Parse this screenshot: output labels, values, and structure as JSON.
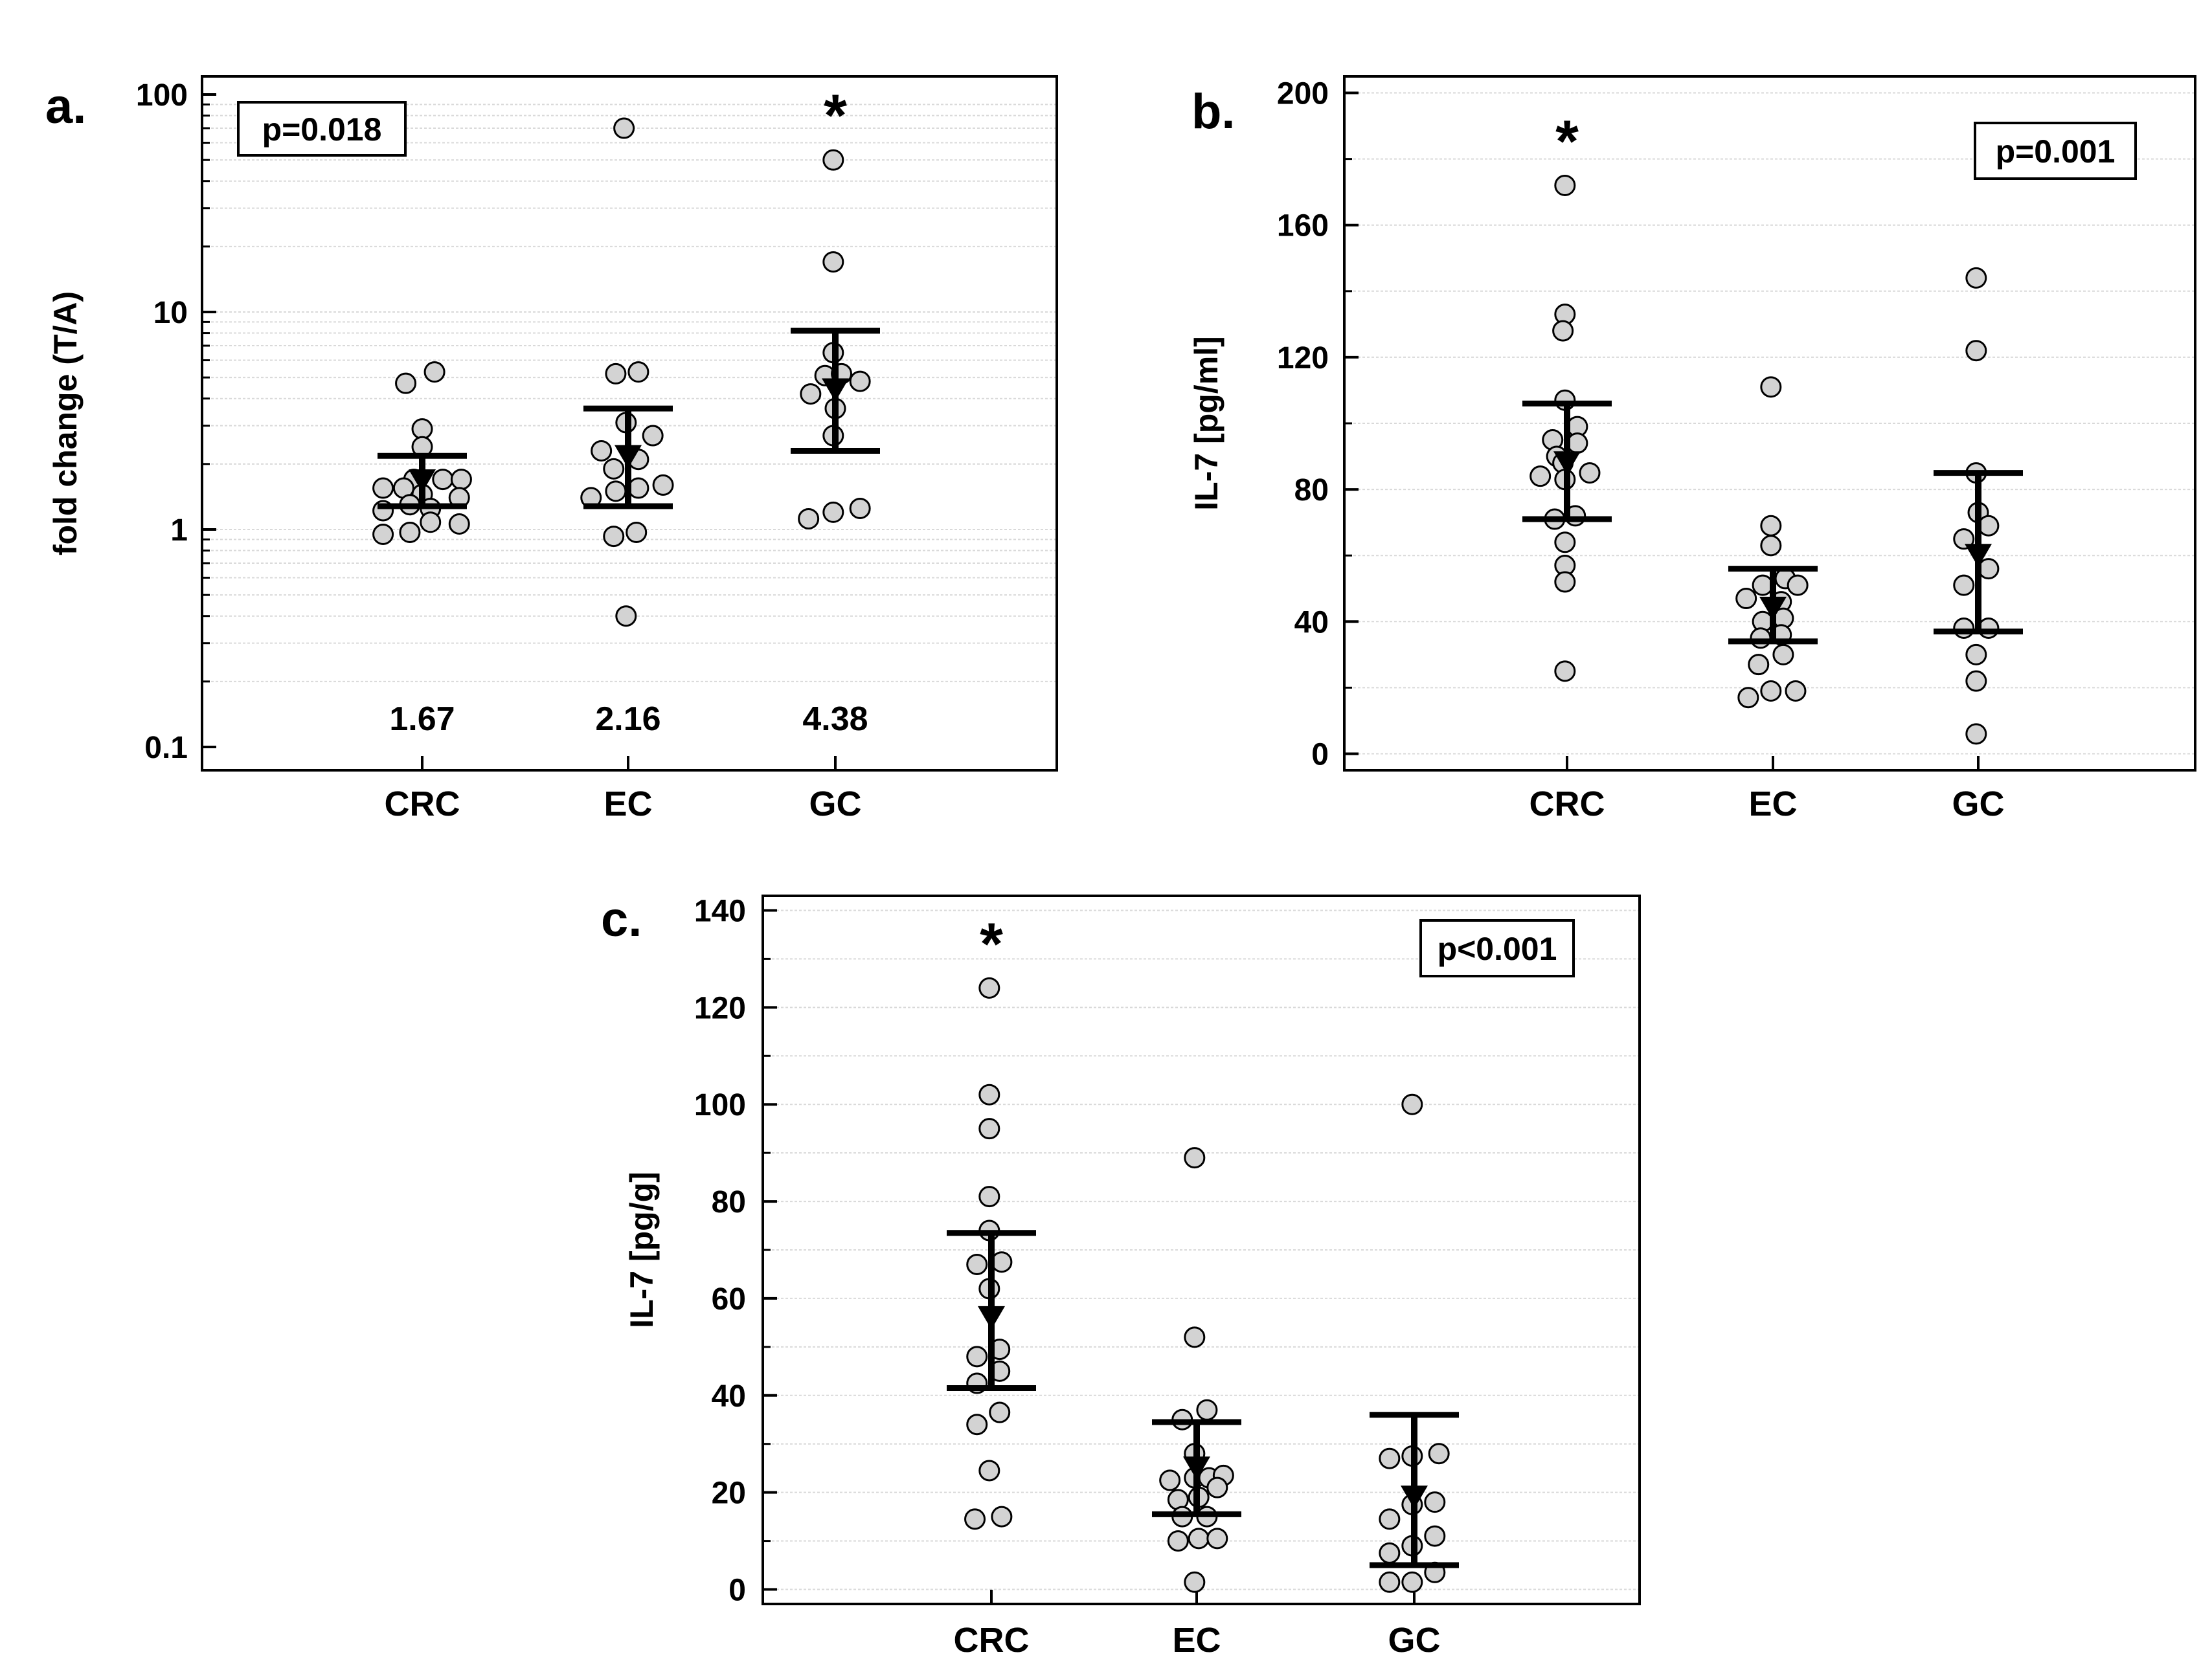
{
  "chart_data": [
    {
      "type": "scatter",
      "panel": "a.",
      "ylabel": "fold change (T/A)",
      "yscale": "log",
      "ylim": [
        0.1,
        100
      ],
      "yticks": [
        "0.1",
        "1",
        "10",
        "100"
      ],
      "categories": [
        "CRC",
        "EC",
        "GC"
      ],
      "p_value_label": "p=0.018",
      "significance": [
        {
          "category": "GC",
          "symbol": "*"
        }
      ],
      "median_labels": [
        {
          "category": "CRC",
          "text": "1.67"
        },
        {
          "category": "EC",
          "text": "2.16"
        },
        {
          "category": "GC",
          "text": "4.38"
        }
      ],
      "summary": [
        {
          "category": "CRC",
          "center": 1.67,
          "lower": 1.28,
          "upper": 2.18
        },
        {
          "category": "EC",
          "center": 2.16,
          "lower": 1.28,
          "upper": 3.6
        },
        {
          "category": "GC",
          "center": 4.38,
          "lower": 2.3,
          "upper": 8.2
        }
      ],
      "points": [
        {
          "category": "CRC",
          "x": -0.08,
          "y": 4.7
        },
        {
          "category": "CRC",
          "x": 0.06,
          "y": 5.3
        },
        {
          "category": "CRC",
          "x": 0.0,
          "y": 2.9
        },
        {
          "category": "CRC",
          "x": 0.0,
          "y": 2.4
        },
        {
          "category": "CRC",
          "x": -0.04,
          "y": 1.7
        },
        {
          "category": "CRC",
          "x": 0.1,
          "y": 1.7
        },
        {
          "category": "CRC",
          "x": 0.19,
          "y": 1.7
        },
        {
          "category": "CRC",
          "x": -0.19,
          "y": 1.55
        },
        {
          "category": "CRC",
          "x": -0.09,
          "y": 1.55
        },
        {
          "category": "CRC",
          "x": 0.0,
          "y": 1.45
        },
        {
          "category": "CRC",
          "x": 0.18,
          "y": 1.4
        },
        {
          "category": "CRC",
          "x": -0.06,
          "y": 1.3
        },
        {
          "category": "CRC",
          "x": 0.04,
          "y": 1.25
        },
        {
          "category": "CRC",
          "x": -0.19,
          "y": 1.22
        },
        {
          "category": "CRC",
          "x": 0.04,
          "y": 1.08
        },
        {
          "category": "CRC",
          "x": 0.18,
          "y": 1.06
        },
        {
          "category": "CRC",
          "x": -0.19,
          "y": 0.95
        },
        {
          "category": "CRC",
          "x": -0.06,
          "y": 0.97
        },
        {
          "category": "EC",
          "x": -0.02,
          "y": 70
        },
        {
          "category": "EC",
          "x": -0.06,
          "y": 5.2
        },
        {
          "category": "EC",
          "x": 0.05,
          "y": 5.3
        },
        {
          "category": "EC",
          "x": -0.01,
          "y": 3.1
        },
        {
          "category": "EC",
          "x": 0.12,
          "y": 2.7
        },
        {
          "category": "EC",
          "x": -0.13,
          "y": 2.3
        },
        {
          "category": "EC",
          "x": 0.05,
          "y": 2.1
        },
        {
          "category": "EC",
          "x": -0.07,
          "y": 1.9
        },
        {
          "category": "EC",
          "x": 0.17,
          "y": 1.6
        },
        {
          "category": "EC",
          "x": 0.05,
          "y": 1.55
        },
        {
          "category": "EC",
          "x": -0.06,
          "y": 1.5
        },
        {
          "category": "EC",
          "x": -0.18,
          "y": 1.4
        },
        {
          "category": "EC",
          "x": 0.04,
          "y": 0.97
        },
        {
          "category": "EC",
          "x": -0.07,
          "y": 0.93
        },
        {
          "category": "EC",
          "x": -0.01,
          "y": 0.4
        },
        {
          "category": "GC",
          "x": -0.01,
          "y": 50
        },
        {
          "category": "GC",
          "x": -0.01,
          "y": 17
        },
        {
          "category": "GC",
          "x": -0.01,
          "y": 6.5
        },
        {
          "category": "GC",
          "x": -0.05,
          "y": 5.1
        },
        {
          "category": "GC",
          "x": 0.03,
          "y": 5.2
        },
        {
          "category": "GC",
          "x": 0.12,
          "y": 4.8
        },
        {
          "category": "GC",
          "x": -0.12,
          "y": 4.2
        },
        {
          "category": "GC",
          "x": 0.0,
          "y": 3.6
        },
        {
          "category": "GC",
          "x": -0.01,
          "y": 2.7
        },
        {
          "category": "GC",
          "x": -0.13,
          "y": 1.12
        },
        {
          "category": "GC",
          "x": -0.01,
          "y": 1.2
        },
        {
          "category": "GC",
          "x": 0.12,
          "y": 1.25
        }
      ]
    },
    {
      "type": "scatter",
      "panel": "b.",
      "ylabel": "IL-7 [pg/ml]",
      "yscale": "linear",
      "ylim": [
        -5,
        205
      ],
      "yticks": [
        "0",
        "40",
        "80",
        "120",
        "160",
        "200"
      ],
      "categories": [
        "CRC",
        "EC",
        "GC"
      ],
      "p_value_label": "p=0.001",
      "significance": [
        {
          "category": "CRC",
          "symbol": "*"
        }
      ],
      "median_labels": [],
      "summary": [
        {
          "category": "CRC",
          "center": 88,
          "lower": 71,
          "upper": 106
        },
        {
          "category": "EC",
          "center": 44,
          "lower": 34,
          "upper": 56
        },
        {
          "category": "GC",
          "center": 60,
          "lower": 37,
          "upper": 85
        }
      ],
      "points": [
        {
          "category": "CRC",
          "x": -0.01,
          "y": 172
        },
        {
          "category": "CRC",
          "x": -0.01,
          "y": 133
        },
        {
          "category": "CRC",
          "x": -0.02,
          "y": 128
        },
        {
          "category": "CRC",
          "x": -0.01,
          "y": 107
        },
        {
          "category": "CRC",
          "x": 0.05,
          "y": 99
        },
        {
          "category": "CRC",
          "x": -0.07,
          "y": 95
        },
        {
          "category": "CRC",
          "x": 0.05,
          "y": 94
        },
        {
          "category": "CRC",
          "x": -0.05,
          "y": 90
        },
        {
          "category": "CRC",
          "x": -0.02,
          "y": 88
        },
        {
          "category": "CRC",
          "x": 0.11,
          "y": 85
        },
        {
          "category": "CRC",
          "x": -0.13,
          "y": 84
        },
        {
          "category": "CRC",
          "x": -0.01,
          "y": 83
        },
        {
          "category": "CRC",
          "x": 0.04,
          "y": 72
        },
        {
          "category": "CRC",
          "x": -0.06,
          "y": 71
        },
        {
          "category": "CRC",
          "x": -0.01,
          "y": 64
        },
        {
          "category": "CRC",
          "x": -0.01,
          "y": 57
        },
        {
          "category": "CRC",
          "x": -0.01,
          "y": 52
        },
        {
          "category": "CRC",
          "x": -0.01,
          "y": 25
        },
        {
          "category": "EC",
          "x": -0.01,
          "y": 111
        },
        {
          "category": "EC",
          "x": -0.01,
          "y": 69
        },
        {
          "category": "EC",
          "x": -0.01,
          "y": 63
        },
        {
          "category": "EC",
          "x": -0.05,
          "y": 51
        },
        {
          "category": "EC",
          "x": 0.06,
          "y": 53
        },
        {
          "category": "EC",
          "x": 0.12,
          "y": 51
        },
        {
          "category": "EC",
          "x": -0.13,
          "y": 47
        },
        {
          "category": "EC",
          "x": 0.04,
          "y": 46
        },
        {
          "category": "EC",
          "x": -0.05,
          "y": 40
        },
        {
          "category": "EC",
          "x": 0.05,
          "y": 41
        },
        {
          "category": "EC",
          "x": -0.06,
          "y": 35
        },
        {
          "category": "EC",
          "x": 0.04,
          "y": 36
        },
        {
          "category": "EC",
          "x": 0.05,
          "y": 30
        },
        {
          "category": "EC",
          "x": -0.07,
          "y": 27
        },
        {
          "category": "EC",
          "x": -0.12,
          "y": 17
        },
        {
          "category": "EC",
          "x": -0.01,
          "y": 19
        },
        {
          "category": "EC",
          "x": 0.11,
          "y": 19
        },
        {
          "category": "GC",
          "x": -0.01,
          "y": 144
        },
        {
          "category": "GC",
          "x": -0.01,
          "y": 122
        },
        {
          "category": "GC",
          "x": -0.01,
          "y": 85
        },
        {
          "category": "GC",
          "x": 0.0,
          "y": 73
        },
        {
          "category": "GC",
          "x": 0.05,
          "y": 69
        },
        {
          "category": "GC",
          "x": -0.07,
          "y": 65
        },
        {
          "category": "GC",
          "x": 0.05,
          "y": 56
        },
        {
          "category": "GC",
          "x": -0.07,
          "y": 51
        },
        {
          "category": "GC",
          "x": -0.07,
          "y": 38
        },
        {
          "category": "GC",
          "x": 0.05,
          "y": 38
        },
        {
          "category": "GC",
          "x": -0.01,
          "y": 30
        },
        {
          "category": "GC",
          "x": -0.01,
          "y": 22
        },
        {
          "category": "GC",
          "x": -0.01,
          "y": 6
        }
      ]
    },
    {
      "type": "scatter",
      "panel": "c.",
      "ylabel": "IL-7 [pg/g]",
      "yscale": "linear",
      "ylim": [
        -3,
        143
      ],
      "yticks": [
        "0",
        "20",
        "40",
        "60",
        "80",
        "100",
        "120",
        "140"
      ],
      "categories": [
        "CRC",
        "EC",
        "GC"
      ],
      "p_value_label": "p<0.001",
      "significance": [
        {
          "category": "CRC",
          "symbol": "*"
        }
      ],
      "median_labels": [],
      "summary": [
        {
          "category": "CRC",
          "center": 56,
          "lower": 41.5,
          "upper": 73.5
        },
        {
          "category": "EC",
          "center": 25,
          "lower": 15.5,
          "upper": 34.5
        },
        {
          "category": "GC",
          "center": 19,
          "lower": 5,
          "upper": 36
        }
      ],
      "points": [
        {
          "category": "CRC",
          "x": -0.01,
          "y": 124
        },
        {
          "category": "CRC",
          "x": -0.01,
          "y": 102
        },
        {
          "category": "CRC",
          "x": -0.01,
          "y": 95
        },
        {
          "category": "CRC",
          "x": -0.01,
          "y": 81
        },
        {
          "category": "CRC",
          "x": -0.01,
          "y": 74
        },
        {
          "category": "CRC",
          "x": -0.07,
          "y": 67
        },
        {
          "category": "CRC",
          "x": 0.05,
          "y": 67.5
        },
        {
          "category": "CRC",
          "x": -0.01,
          "y": 62
        },
        {
          "category": "CRC",
          "x": -0.07,
          "y": 48
        },
        {
          "category": "CRC",
          "x": 0.04,
          "y": 49.5
        },
        {
          "category": "CRC",
          "x": -0.07,
          "y": 42.5
        },
        {
          "category": "CRC",
          "x": 0.04,
          "y": 45
        },
        {
          "category": "CRC",
          "x": 0.04,
          "y": 36.5
        },
        {
          "category": "CRC",
          "x": -0.07,
          "y": 34
        },
        {
          "category": "CRC",
          "x": -0.01,
          "y": 24.5
        },
        {
          "category": "CRC",
          "x": -0.08,
          "y": 14.5
        },
        {
          "category": "CRC",
          "x": 0.05,
          "y": 15
        },
        {
          "category": "EC",
          "x": -0.01,
          "y": 89
        },
        {
          "category": "EC",
          "x": -0.01,
          "y": 52
        },
        {
          "category": "EC",
          "x": 0.05,
          "y": 37
        },
        {
          "category": "EC",
          "x": -0.07,
          "y": 35
        },
        {
          "category": "EC",
          "x": -0.01,
          "y": 28
        },
        {
          "category": "EC",
          "x": -0.13,
          "y": 22.5
        },
        {
          "category": "EC",
          "x": -0.01,
          "y": 23
        },
        {
          "category": "EC",
          "x": 0.06,
          "y": 23
        },
        {
          "category": "EC",
          "x": 0.13,
          "y": 23.5
        },
        {
          "category": "EC",
          "x": -0.09,
          "y": 18.5
        },
        {
          "category": "EC",
          "x": 0.01,
          "y": 19
        },
        {
          "category": "EC",
          "x": 0.1,
          "y": 21
        },
        {
          "category": "EC",
          "x": -0.07,
          "y": 15
        },
        {
          "category": "EC",
          "x": 0.05,
          "y": 15
        },
        {
          "category": "EC",
          "x": -0.09,
          "y": 10
        },
        {
          "category": "EC",
          "x": 0.01,
          "y": 10.5
        },
        {
          "category": "EC",
          "x": 0.1,
          "y": 10.5
        },
        {
          "category": "EC",
          "x": -0.01,
          "y": 1.5
        },
        {
          "category": "GC",
          "x": -0.01,
          "y": 100
        },
        {
          "category": "GC",
          "x": -0.12,
          "y": 27
        },
        {
          "category": "GC",
          "x": -0.01,
          "y": 27.5
        },
        {
          "category": "GC",
          "x": 0.12,
          "y": 28
        },
        {
          "category": "GC",
          "x": -0.01,
          "y": 17.5
        },
        {
          "category": "GC",
          "x": 0.1,
          "y": 18
        },
        {
          "category": "GC",
          "x": -0.12,
          "y": 14.5
        },
        {
          "category": "GC",
          "x": 0.1,
          "y": 11
        },
        {
          "category": "GC",
          "x": -0.01,
          "y": 9
        },
        {
          "category": "GC",
          "x": -0.12,
          "y": 7.5
        },
        {
          "category": "GC",
          "x": 0.1,
          "y": 3.5
        },
        {
          "category": "GC",
          "x": -0.12,
          "y": 1.5
        },
        {
          "category": "GC",
          "x": -0.01,
          "y": 1.5
        }
      ]
    }
  ]
}
